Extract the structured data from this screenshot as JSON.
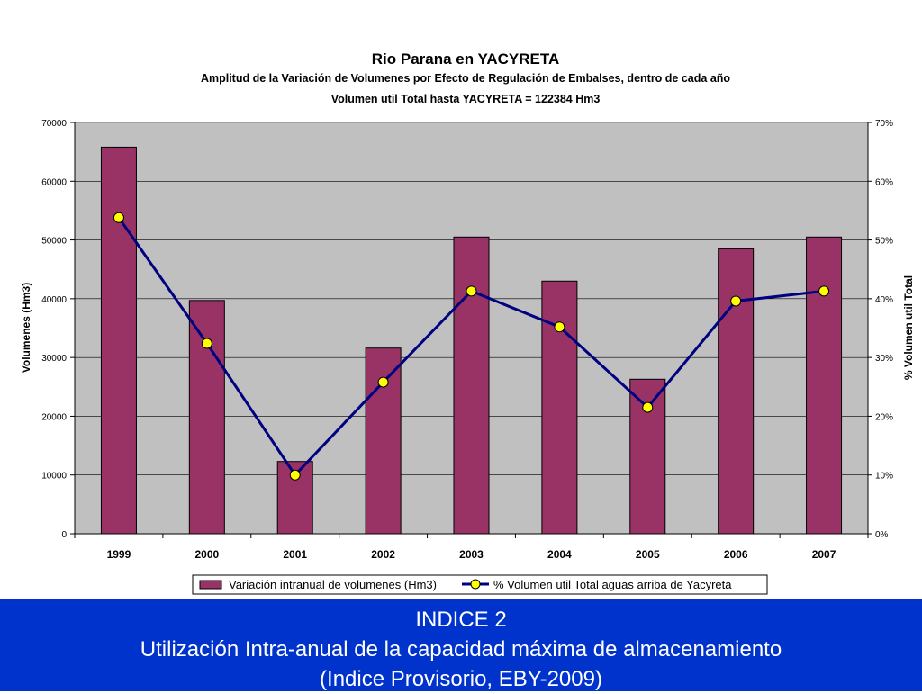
{
  "chart_data": {
    "type": "bar+line",
    "title": "Rio Parana en YACYRETA",
    "subtitle": "Amplitud de la Variación de Volumenes por Efecto de Regulación de Embalses, dentro de cada año",
    "subtitle2": "Volumen util Total hasta YACYRETA = 122384 Hm3",
    "ylabel": "Volumenes (Hm3)",
    "y2label": "% Volumen util Total",
    "ylim": [
      0,
      70000
    ],
    "y2lim": [
      0,
      70
    ],
    "yticks": [
      "0",
      "10000",
      "20000",
      "30000",
      "40000",
      "50000",
      "60000",
      "70000"
    ],
    "y2ticks": [
      "0%",
      "10%",
      "20%",
      "30%",
      "40%",
      "50%",
      "60%",
      "70%"
    ],
    "categories": [
      "1999",
      "2000",
      "2001",
      "2002",
      "2003",
      "2004",
      "2005",
      "2006",
      "2007"
    ],
    "grid": true,
    "legend_position": "bottom",
    "series": [
      {
        "name": "Variación intranual de volumenes (Hm3)",
        "type": "bar",
        "axis": "left",
        "color": "#993366",
        "values": [
          65800,
          39700,
          12300,
          31600,
          50500,
          43000,
          26300,
          48500,
          50500
        ]
      },
      {
        "name": "% Volumen util Total aguas arriba de Yacyreta",
        "type": "line",
        "axis": "right",
        "color": "#000080",
        "marker_color": "#ffff00",
        "values": [
          53.8,
          32.4,
          10.0,
          25.8,
          41.3,
          35.2,
          21.5,
          39.6,
          41.3
        ]
      }
    ]
  },
  "footer": {
    "line1": "INDICE 2",
    "line2": "Utilización Intra-anual de la capacidad máxima de almacenamiento",
    "line3": "(Indice Provisorio, EBY-2009)"
  },
  "colors": {
    "plot_background": "#c0c0c0",
    "footer_background": "#0033cc"
  }
}
